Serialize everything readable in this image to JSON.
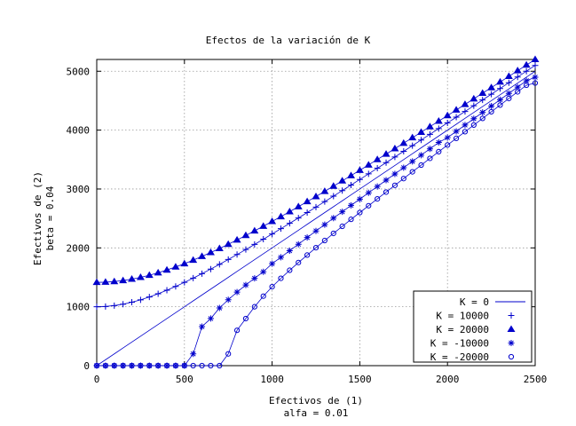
{
  "chart_data": {
    "type": "line",
    "title": "Efectos de la variación de K",
    "xlabel": [
      "Efectivos de (1)",
      "alfa = 0.01"
    ],
    "ylabel": [
      "Efectivos de (2)",
      "beta = 0.04"
    ],
    "xlim": [
      0,
      2500
    ],
    "ylim": [
      0,
      5200
    ],
    "xticks": [
      0,
      500,
      1000,
      1500,
      2000,
      2500
    ],
    "yticks": [
      0,
      1000,
      2000,
      3000,
      4000,
      5000
    ],
    "grid": true,
    "legend_position": "bottom-right",
    "x": [
      0,
      50,
      100,
      150,
      200,
      250,
      300,
      350,
      400,
      450,
      500,
      550,
      600,
      650,
      700,
      750,
      800,
      850,
      900,
      950,
      1000,
      1050,
      1100,
      1150,
      1200,
      1250,
      1300,
      1350,
      1400,
      1450,
      1500,
      1550,
      1600,
      1650,
      1700,
      1750,
      1800,
      1850,
      1900,
      1950,
      2000,
      2050,
      2100,
      2150,
      2200,
      2250,
      2300,
      2350,
      2400,
      2450,
      2500
    ],
    "series": [
      {
        "name": "K = 0",
        "marker": "line",
        "values": [
          0,
          100,
          200,
          300,
          400,
          500,
          600,
          700,
          800,
          900,
          1000,
          1100,
          1200,
          1300,
          1400,
          1500,
          1600,
          1700,
          1800,
          1900,
          2000,
          2100,
          2200,
          2300,
          2400,
          2500,
          2600,
          2700,
          2800,
          2900,
          3000,
          3100,
          3200,
          3300,
          3400,
          3500,
          3600,
          3700,
          3800,
          3900,
          4000,
          4100,
          4200,
          4300,
          4400,
          4500,
          4600,
          4700,
          4800,
          4900,
          5000
        ]
      },
      {
        "name": "K = 10000",
        "marker": "plus",
        "values": [
          1000,
          1005,
          1020,
          1044,
          1077,
          1118,
          1166,
          1221,
          1281,
          1345,
          1414,
          1487,
          1562,
          1640,
          1720,
          1803,
          1887,
          1972,
          2059,
          2147,
          2236,
          2326,
          2417,
          2508,
          2600,
          2693,
          2786,
          2879,
          2973,
          3067,
          3162,
          3257,
          3353,
          3448,
          3544,
          3640,
          3736,
          3833,
          3929,
          4026,
          4123,
          4220,
          4317,
          4414,
          4512,
          4610,
          4707,
          4805,
          4903,
          5001,
          5099
        ]
      },
      {
        "name": "K = 20000",
        "marker": "triangle",
        "values": [
          1414,
          1418,
          1428,
          1446,
          1470,
          1500,
          1536,
          1577,
          1625,
          1676,
          1732,
          1792,
          1855,
          1921,
          1990,
          2062,
          2135,
          2211,
          2289,
          2368,
          2449,
          2531,
          2615,
          2700,
          2786,
          2872,
          2960,
          3049,
          3138,
          3228,
          3318,
          3409,
          3501,
          3593,
          3685,
          3778,
          3871,
          3965,
          4059,
          4153,
          4247,
          4342,
          4437,
          4532,
          4627,
          4722,
          4817,
          4913,
          5009,
          5105,
          5200
        ]
      },
      {
        "name": "K = -10000",
        "marker": "star",
        "values": [
          0,
          0,
          0,
          0,
          0,
          0,
          0,
          0,
          0,
          0,
          0,
          200,
          663,
          800,
          980,
          1120,
          1249,
          1370,
          1483,
          1594,
          1732,
          1840,
          1952,
          2062,
          2176,
          2288,
          2395,
          2506,
          2613,
          2722,
          2828,
          2936,
          3042,
          3150,
          3256,
          3362,
          3469,
          3575,
          3682,
          3790,
          3873,
          3979,
          4086,
          4194,
          4301,
          4409,
          4516,
          4624,
          4731,
          4839,
          4899
        ]
      },
      {
        "name": "K = -20000",
        "marker": "circle",
        "values": [
          0,
          0,
          0,
          0,
          0,
          0,
          0,
          0,
          0,
          0,
          0,
          0,
          0,
          0,
          0,
          200,
          600,
          800,
          1000,
          1180,
          1340,
          1483,
          1620,
          1751,
          1878,
          2003,
          2125,
          2246,
          2366,
          2485,
          2600,
          2716,
          2832,
          2947,
          3062,
          3177,
          3292,
          3406,
          3520,
          3634,
          3747,
          3860,
          3973,
          4086,
          4199,
          4312,
          4425,
          4537,
          4650,
          4762,
          4800
        ]
      }
    ]
  }
}
